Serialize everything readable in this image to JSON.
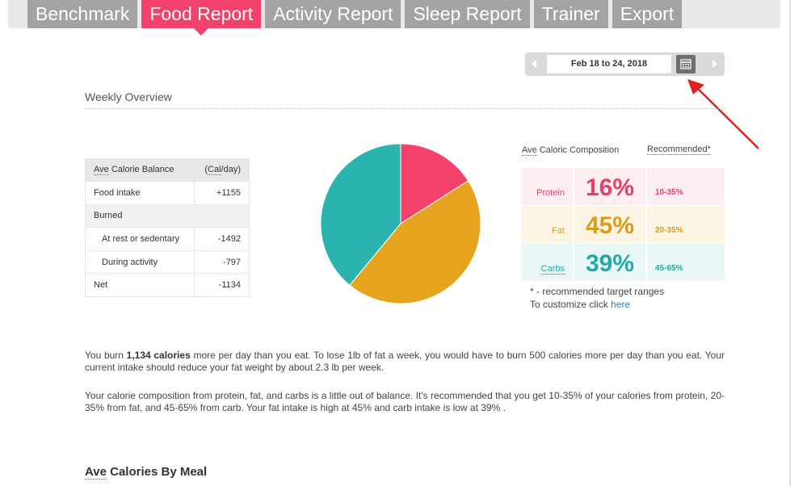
{
  "tabs": [
    {
      "label": "Benchmark",
      "active": false
    },
    {
      "label": "Food Report",
      "active": true
    },
    {
      "label": "Activity Report",
      "active": false
    },
    {
      "label": "Sleep Report",
      "active": false
    },
    {
      "label": "Trainer",
      "active": false
    },
    {
      "label": "Export",
      "active": false
    }
  ],
  "date_picker": {
    "range": "Feb 18 to 24, 2018",
    "prev_icon": "triangle-left",
    "next_icon": "triangle-right",
    "calendar_icon": "calendar-icon"
  },
  "overview": {
    "title": "Weekly Overview"
  },
  "balance_table": {
    "header_abbr": "Ave",
    "header_rest": " Calorie Balance",
    "unit_abbr": "Cal",
    "unit_open": "(",
    "unit_close": "/day)",
    "food_intake_label": "Food intake",
    "food_intake_value": "+1155",
    "burned_label": "Burned",
    "rest_label": "At rest or sedentary",
    "rest_value": "-1492",
    "activity_label": "During activity",
    "activity_value": "-797",
    "net_label": "Net",
    "net_value": "-1134"
  },
  "chart_data": {
    "type": "pie",
    "slices": [
      {
        "label": "Protein",
        "value": 16,
        "color": "#f2426b"
      },
      {
        "label": "Fat",
        "value": 45,
        "color": "#e6a31e"
      },
      {
        "label": "Carbs",
        "value": 39,
        "color": "#2bb3b0"
      }
    ]
  },
  "composition": {
    "title_abbr": "Ave",
    "title_rest": " Caloric Composition",
    "recommended_title": "Recommended*",
    "rows": [
      {
        "label": "Protein",
        "pct": "16%",
        "rec": "10-35%",
        "color": "#e83f6a",
        "bg": "#fdeef1"
      },
      {
        "label": "Fat",
        "pct": "45%",
        "rec": "20-35%",
        "color": "#d89b1a",
        "bg": "#fdf5e3"
      },
      {
        "label": "Carbs",
        "pct": "39%",
        "rec": "45-65%",
        "color": "#25a8a6",
        "bg": "#e9f7f7"
      }
    ],
    "note1": "* - recommended target ranges",
    "note2": "To customize click ",
    "note_link": "here"
  },
  "summary": {
    "p1_a": "You burn ",
    "p1_bold": "1,134 calories",
    "p1_b": " more per day than you eat. To lose 1lb of fat a week, you would have to burn 500 calories more per day than you eat. Your current intake should reduce your fat weight by about 2.3 lb per week.",
    "p2": "Your calorie composition from protein, fat, and carbs is a little out of balance. It's recommended that you get 10-35% of your calories from protein, 20-35% from fat, and 45-65% from carb. Your fat intake is high at 45% and carb intake is low at 39% ."
  },
  "meal": {
    "title_abbr": "Ave",
    "title_rest": " Calories By Meal"
  }
}
